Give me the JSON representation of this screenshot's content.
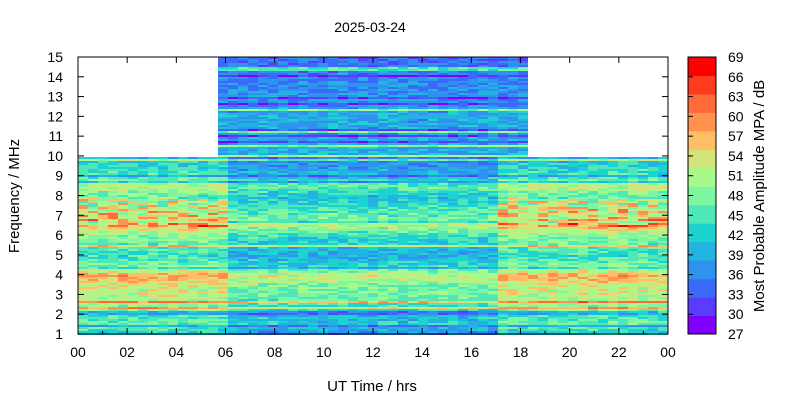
{
  "chart_data": {
    "type": "heatmap",
    "title": "2025-03-24",
    "xlabel": "UT Time / hrs",
    "ylabel": "Frequency / MHz",
    "colorbar_label": "Most Probable Amplitude MPA / dB",
    "x_range": [
      0,
      24
    ],
    "y_range": [
      1,
      15
    ],
    "x_tick_labels": [
      "00",
      "02",
      "04",
      "06",
      "08",
      "10",
      "12",
      "14",
      "16",
      "18",
      "20",
      "22",
      "00"
    ],
    "y_tick_labels": [
      "1",
      "2",
      "3",
      "4",
      "5",
      "6",
      "7",
      "8",
      "9",
      "10",
      "11",
      "12",
      "13",
      "14",
      "15"
    ],
    "colorbar_ticks": [
      27,
      30,
      33,
      36,
      39,
      42,
      45,
      48,
      51,
      54,
      57,
      60,
      63,
      66,
      69
    ],
    "colorbar_colors": [
      "#7f00ff",
      "#5a3cff",
      "#3a6af9",
      "#2f92ee",
      "#22b3e0",
      "#1cd3d0",
      "#4ee8b8",
      "#7ef5a0",
      "#a4fb8c",
      "#d2e57a",
      "#ffbe63",
      "#ff924e",
      "#ff6b38",
      "#ff3a1f",
      "#ff0000"
    ],
    "coverage": {
      "low_band_mhz": [
        1,
        10
      ],
      "high_band_mhz": [
        10,
        15
      ],
      "high_band_hours": [
        5.5,
        18
      ]
    },
    "bands": [
      {
        "freq": 1.0,
        "mpa": 40
      },
      {
        "freq": 1.5,
        "mpa": 47
      },
      {
        "freq": 2.0,
        "mpa": 45
      },
      {
        "freq": 2.5,
        "mpa": 50
      },
      {
        "freq": 3.0,
        "mpa": 52
      },
      {
        "freq": 3.5,
        "mpa": 53
      },
      {
        "freq": 4.0,
        "mpa": 58
      },
      {
        "freq": 4.5,
        "mpa": 48
      },
      {
        "freq": 5.0,
        "mpa": 44
      },
      {
        "freq": 5.5,
        "mpa": 46
      },
      {
        "freq": 6.0,
        "mpa": 49
      },
      {
        "freq": 6.5,
        "mpa": 56
      },
      {
        "freq": 7.0,
        "mpa": 52
      },
      {
        "freq": 7.5,
        "mpa": 49
      },
      {
        "freq": 8.0,
        "mpa": 46
      },
      {
        "freq": 8.5,
        "mpa": 52
      },
      {
        "freq": 9.0,
        "mpa": 45
      },
      {
        "freq": 9.5,
        "mpa": 43
      },
      {
        "freq": 10.0,
        "mpa": 40
      },
      {
        "freq": 11.0,
        "mpa": 38
      },
      {
        "freq": 12.0,
        "mpa": 39
      },
      {
        "freq": 13.0,
        "mpa": 37
      },
      {
        "freq": 14.0,
        "mpa": 36
      },
      {
        "freq": 15.0,
        "mpa": 34
      }
    ],
    "grid": false,
    "colorbar_position": "right"
  }
}
